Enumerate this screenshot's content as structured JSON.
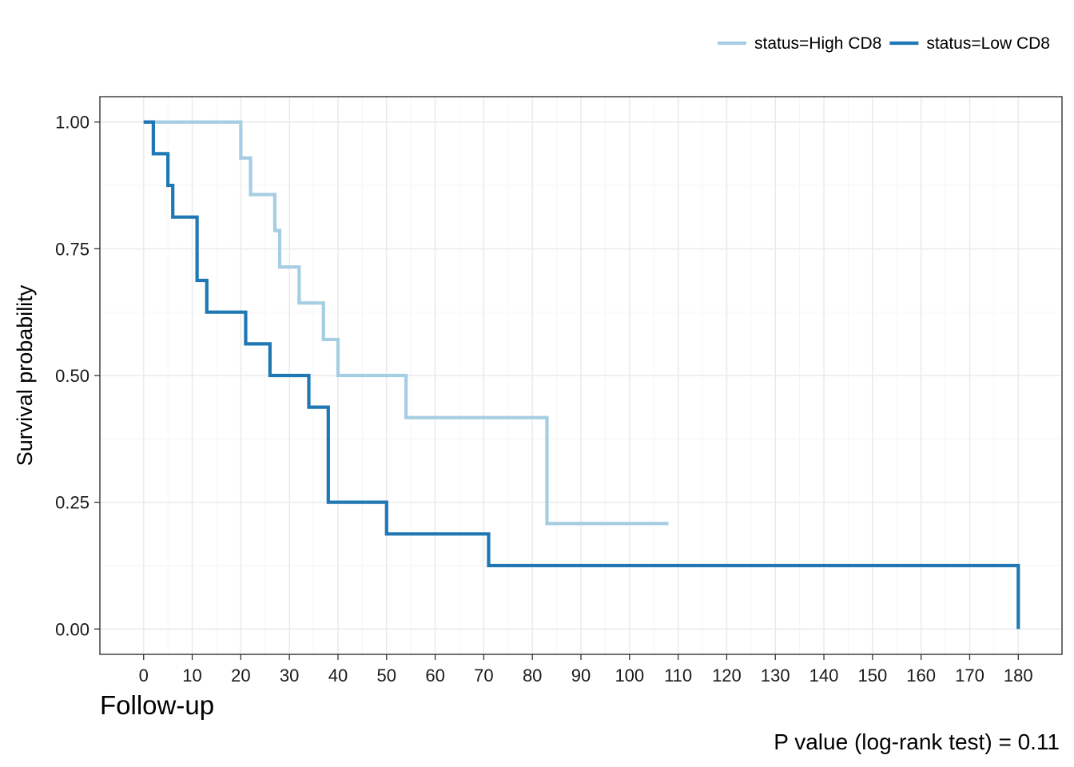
{
  "chart_data": {
    "type": "line",
    "subtype": "kaplan-meier-step",
    "xlabel": "Follow-up",
    "ylabel": "Survival probability",
    "xlim": [
      -9,
      189
    ],
    "ylim": [
      -0.05,
      1.05
    ],
    "x_ticks": [
      0,
      10,
      20,
      30,
      40,
      50,
      60,
      70,
      80,
      90,
      100,
      110,
      120,
      130,
      140,
      150,
      160,
      170,
      180
    ],
    "y_ticks": [
      0.0,
      0.25,
      0.5,
      0.75,
      1.0
    ],
    "y_tick_labels": [
      "0.00",
      "0.25",
      "0.50",
      "0.75",
      "1.00"
    ],
    "grid": true,
    "legend_position": "top-right",
    "annotation": "P value (log-rank test) = 0.11",
    "series": [
      {
        "name": "status=High CD8",
        "color": "#a6cee3",
        "x": [
          0,
          20,
          22,
          27,
          28,
          32,
          37,
          40,
          54,
          83,
          108
        ],
        "y": [
          1.0,
          0.929,
          0.857,
          0.786,
          0.714,
          0.643,
          0.571,
          0.5,
          0.417,
          0.208,
          0.208
        ]
      },
      {
        "name": "status=Low CD8",
        "color": "#1f78b4",
        "x": [
          0,
          2,
          5,
          6,
          11,
          13,
          21,
          26,
          34,
          38,
          50,
          71,
          180
        ],
        "y": [
          1.0,
          0.9375,
          0.875,
          0.8125,
          0.6875,
          0.625,
          0.5625,
          0.5,
          0.4375,
          0.25,
          0.1875,
          0.125,
          0.0
        ]
      }
    ]
  }
}
